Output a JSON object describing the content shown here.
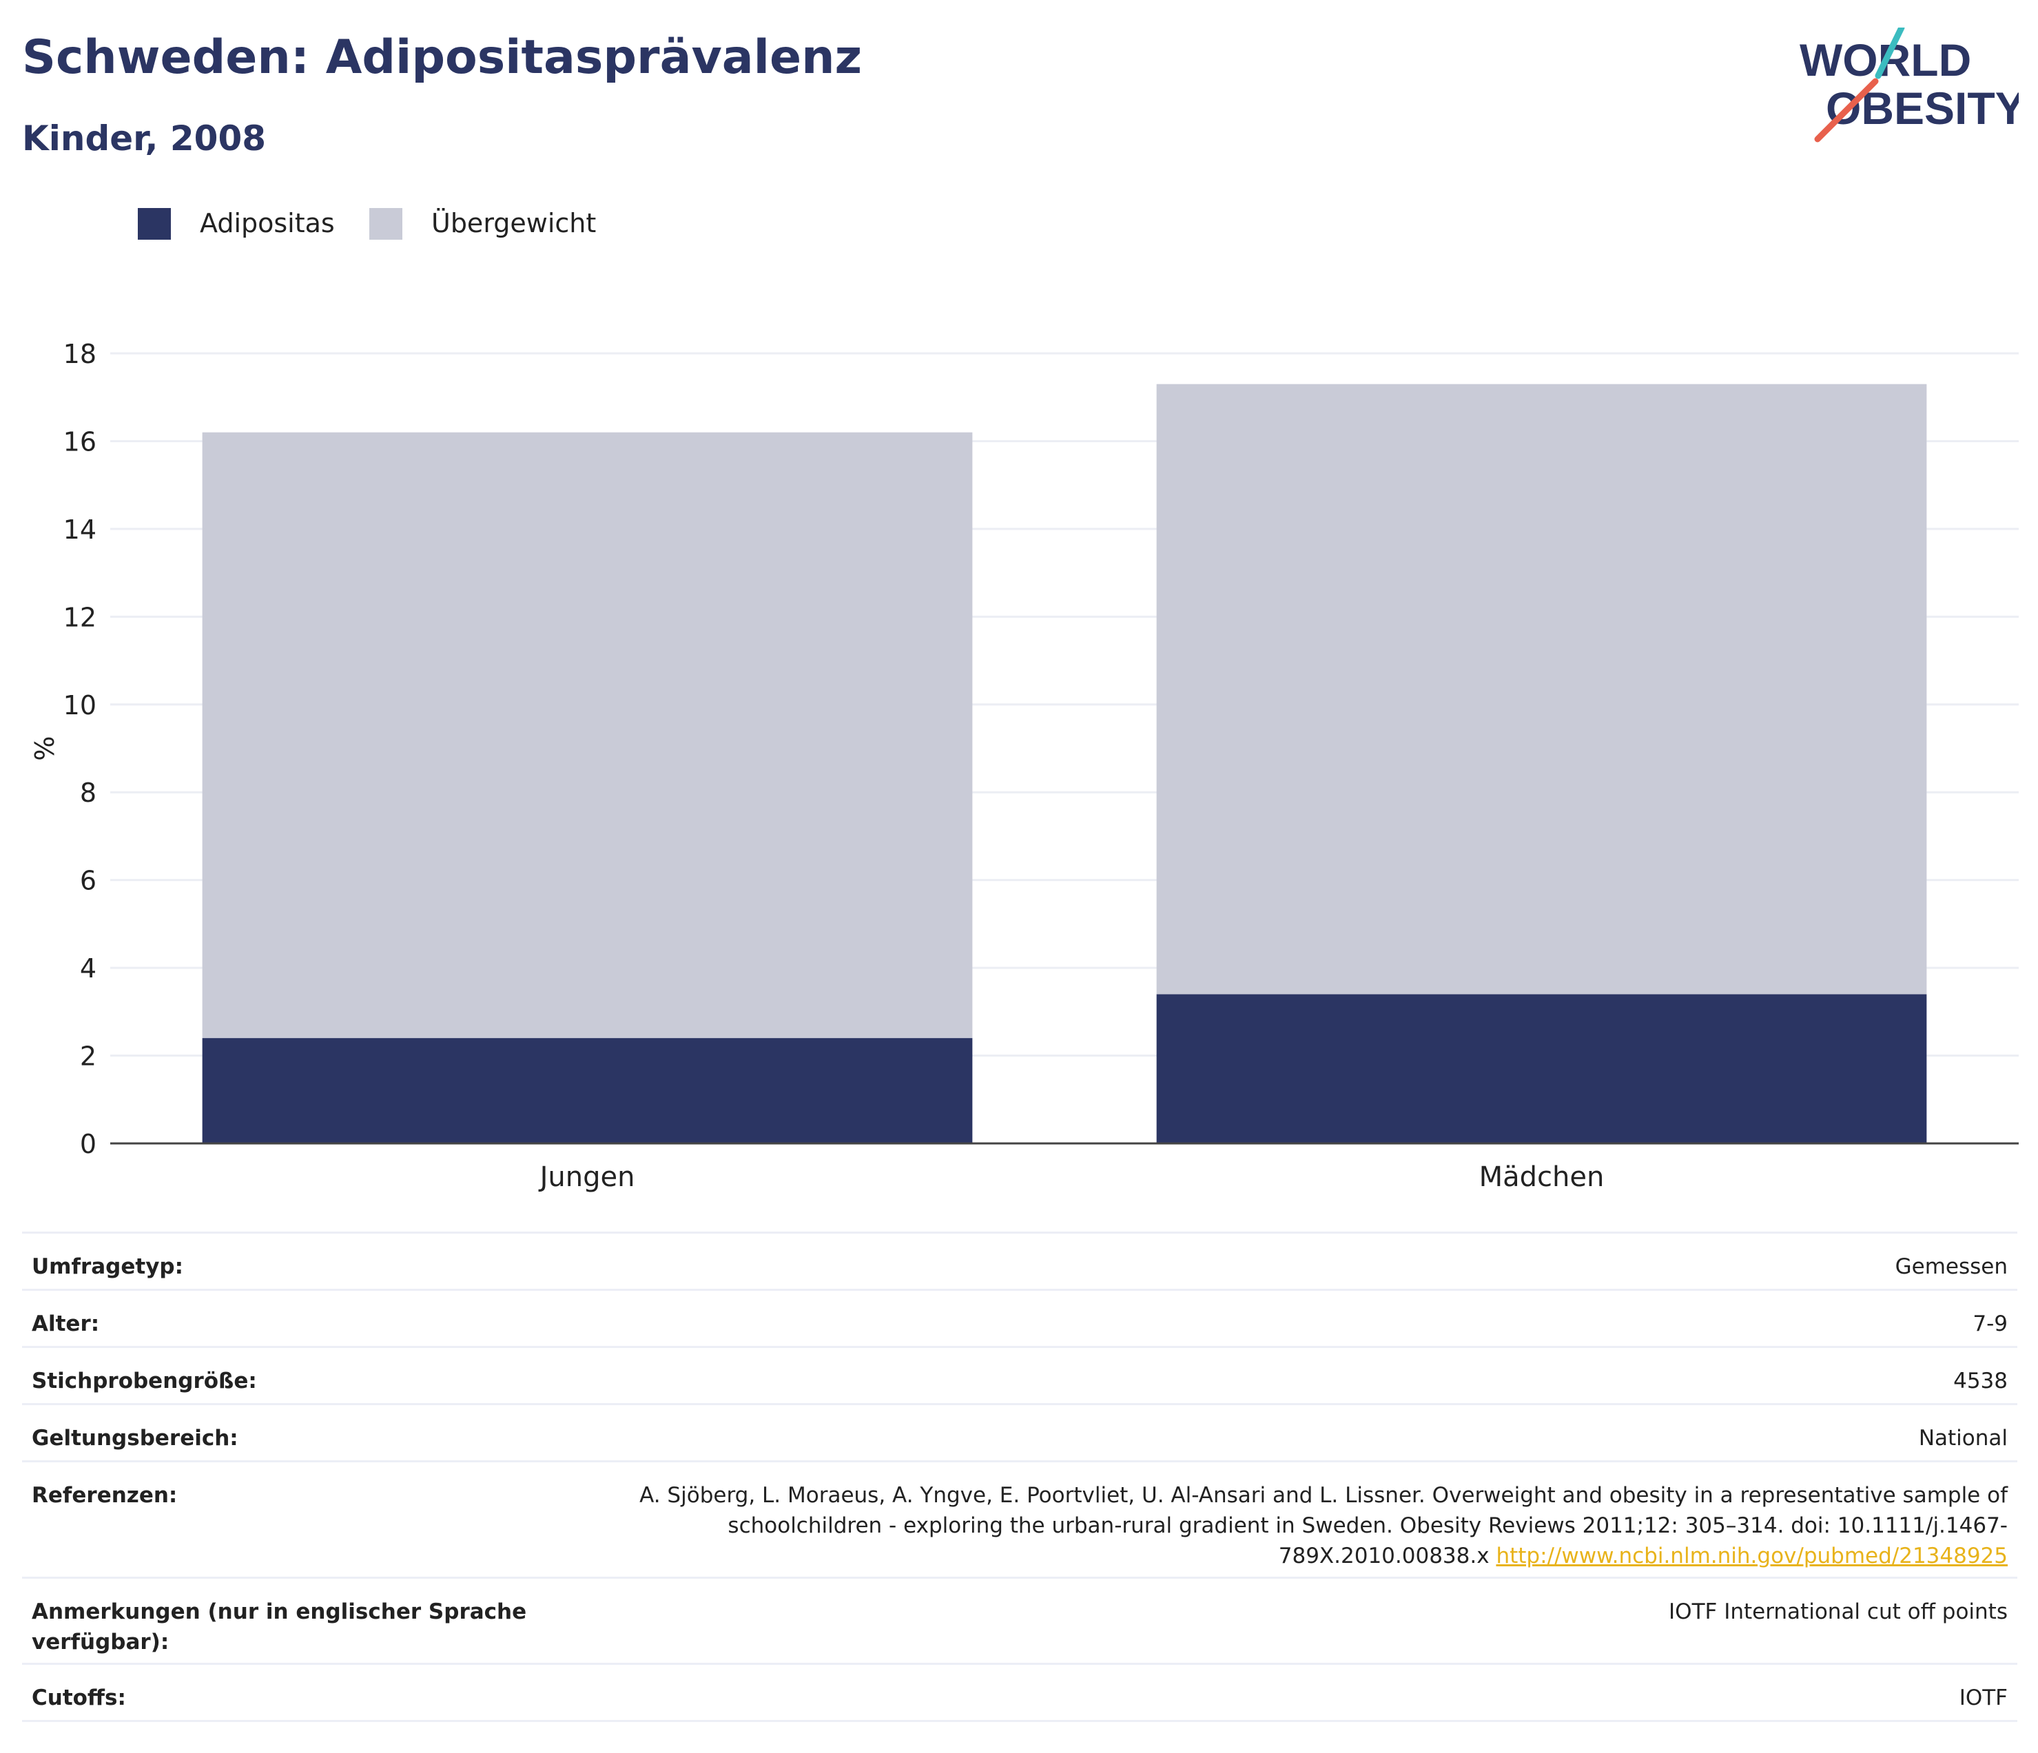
{
  "header": {
    "title": "Schweden: Adipositasprävalenz",
    "subtitle": "Kinder, 2008"
  },
  "logo": {
    "line1": "WORLD",
    "line2": "OBESITY",
    "colors": {
      "text": "#2b3563",
      "slash_top": "#3bbcc0",
      "slash_bottom": "#e8604c"
    }
  },
  "legend": [
    {
      "label": "Adipositas",
      "color": "#2b3563"
    },
    {
      "label": "Übergewicht",
      "color": "#c9cbd7"
    }
  ],
  "chart_data": {
    "type": "bar",
    "stacked": true,
    "categories": [
      "Jungen",
      "Mädchen"
    ],
    "series": [
      {
        "name": "Adipositas",
        "color": "#2b3563",
        "values": [
          2.4,
          3.4
        ]
      },
      {
        "name": "Übergewicht",
        "color": "#c9cbd7",
        "values": [
          13.8,
          13.9
        ]
      }
    ],
    "ylabel": "%",
    "ylim": [
      0,
      18
    ],
    "yticks": [
      0,
      2,
      4,
      6,
      8,
      10,
      12,
      14,
      16,
      18
    ],
    "grid": true,
    "legend_position": "top-left"
  },
  "info": [
    {
      "key": "Umfragetyp:",
      "value": "Gemessen"
    },
    {
      "key": "Alter:",
      "value": "7-9"
    },
    {
      "key": "Stichprobengröße:",
      "value": "4538"
    },
    {
      "key": "Geltungsbereich:",
      "value": "National"
    },
    {
      "key": "Referenzen:",
      "value": "A. Sjöberg, L. Moraeus, A. Yngve, E. Poortvliet, U. Al-Ansari and L. Lissner. Overweight and obesity in a representative sample of schoolchildren - exploring the urban-rural gradient in Sweden. Obesity Reviews 2011;12: 305–314. doi: 10.1111/j.1467-789X.2010.00838.x",
      "link": "http://www.ncbi.nlm.nih.gov/pubmed/21348925"
    },
    {
      "key": "Anmerkungen (nur in englischer Sprache verfügbar):",
      "value": "IOTF International cut off points"
    },
    {
      "key": "Cutoffs:",
      "value": "IOTF"
    }
  ]
}
